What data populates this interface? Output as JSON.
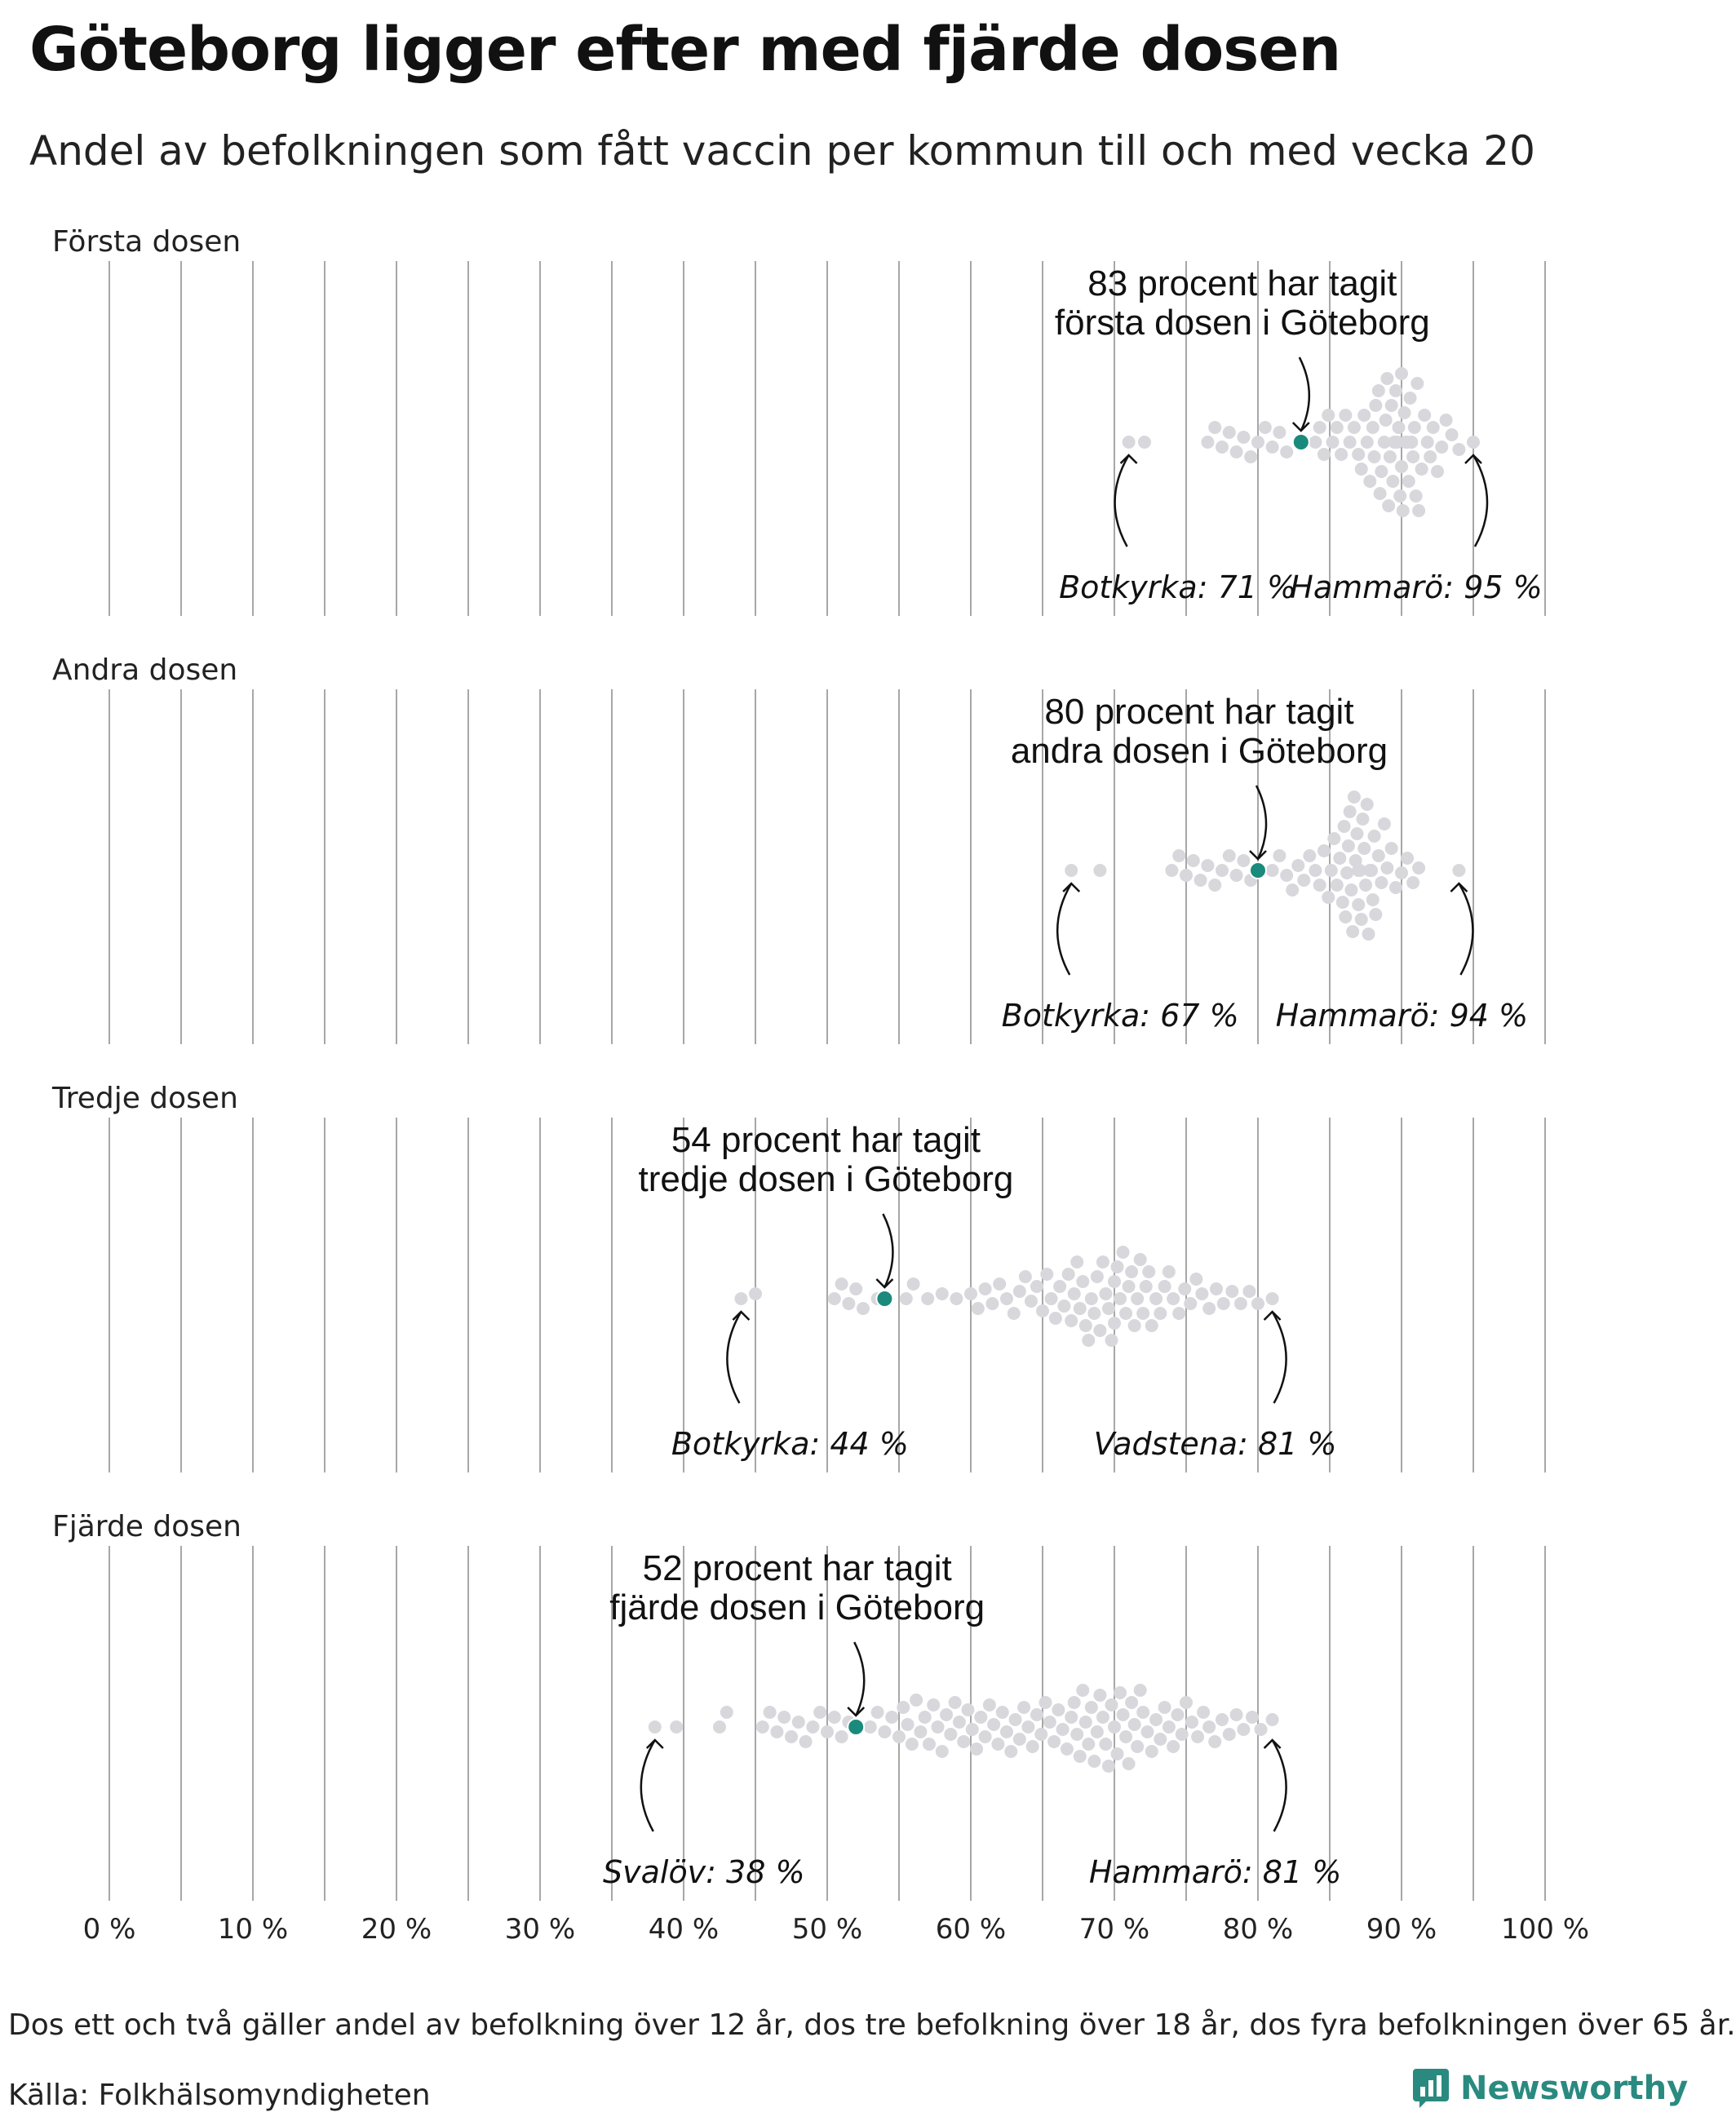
{
  "title": "Göteborg ligger efter med fjärde dosen",
  "subtitle": "Andel av befolkningen som fått vaccin per kommun till och med vecka 20",
  "footnote": "Dos ett och två gäller andel av befolkning över 12 år, dos tre befolkning över 18 år, dos fyra befolkningen över 65 år.",
  "source": "Källa: Folkhälsomyndigheten",
  "brand": "Newsworthy",
  "colors": {
    "dot": "#d8d7dc",
    "highlight": "#1a8a7c",
    "grid": "#a7a7a7",
    "brand": "#2a8a80"
  },
  "icons": {
    "brand_logo": "newsworthy-bar-chart-icon"
  },
  "chart_data": {
    "type": "scatter",
    "xlim": [
      0,
      100
    ],
    "x_unit": "%",
    "x_ticks": [
      "0 %",
      "10 %",
      "20 %",
      "30 %",
      "40 %",
      "50 %",
      "60 %",
      "70 %",
      "80 %",
      "90 %",
      "100 %"
    ],
    "grid": true,
    "panels": [
      {
        "name": "Första dosen",
        "goteborg": 83,
        "callout": [
          "83 procent har tagit",
          "första dosen i Göteborg"
        ],
        "low": {
          "label": "Botkyrka: 71 %",
          "value": 71
        },
        "high": {
          "label": "Hammarö: 95 %",
          "value": 95
        },
        "values": [
          71.0,
          72.1,
          76.5,
          77.0,
          77.5,
          78.0,
          78.5,
          79.0,
          79.5,
          80.0,
          80.5,
          81.0,
          81.5,
          82.0,
          84.0,
          84.3,
          84.6,
          84.9,
          85.2,
          85.5,
          85.8,
          86.1,
          86.4,
          86.7,
          87.0,
          87.2,
          87.4,
          87.6,
          87.8,
          88.0,
          88.1,
          88.2,
          88.4,
          88.5,
          88.6,
          88.8,
          88.9,
          89.0,
          89.1,
          89.2,
          89.3,
          89.4,
          89.5,
          89.6,
          89.7,
          89.8,
          89.9,
          90.0,
          90.0,
          90.1,
          90.2,
          90.3,
          90.4,
          90.5,
          90.6,
          90.7,
          90.8,
          90.9,
          91.0,
          91.1,
          91.2,
          91.4,
          91.6,
          91.8,
          92.0,
          92.2,
          92.5,
          92.8,
          93.1,
          93.5,
          94.0,
          95.0
        ]
      },
      {
        "name": "Andra dosen",
        "goteborg": 80,
        "callout": [
          "80 procent har tagit",
          "andra dosen i Göteborg"
        ],
        "low": {
          "label": "Botkyrka: 67 %",
          "value": 67
        },
        "high": {
          "label": "Hammarö: 94 %",
          "value": 94
        },
        "values": [
          67.0,
          69.0,
          74.0,
          74.5,
          75.0,
          75.5,
          76.0,
          76.5,
          77.0,
          77.5,
          78.0,
          78.5,
          79.0,
          79.5,
          81.0,
          81.5,
          82.0,
          82.4,
          82.8,
          83.2,
          83.6,
          84.0,
          84.3,
          84.6,
          84.9,
          85.1,
          85.3,
          85.5,
          85.7,
          85.9,
          86.0,
          86.1,
          86.2,
          86.3,
          86.4,
          86.5,
          86.6,
          86.7,
          86.8,
          86.9,
          87.0,
          87.0,
          87.1,
          87.2,
          87.3,
          87.4,
          87.5,
          87.6,
          87.7,
          87.8,
          87.9,
          88.0,
          88.1,
          88.2,
          88.4,
          88.6,
          88.8,
          89.0,
          89.3,
          89.6,
          90.0,
          90.4,
          90.8,
          91.2,
          94.0
        ]
      },
      {
        "name": "Tredje dosen",
        "goteborg": 54,
        "callout": [
          "54 procent har tagit",
          "tredje dosen i Göteborg"
        ],
        "low": {
          "label": "Botkyrka: 44 %",
          "value": 44
        },
        "high": {
          "label": "Vadstena: 81 %",
          "value": 81
        },
        "values": [
          44.0,
          45.0,
          50.5,
          51.0,
          51.5,
          52.0,
          52.5,
          53.5,
          55.5,
          56.0,
          57.0,
          58.0,
          59.0,
          60.0,
          60.5,
          61.0,
          61.5,
          62.0,
          62.5,
          63.0,
          63.4,
          63.8,
          64.2,
          64.6,
          65.0,
          65.3,
          65.6,
          65.9,
          66.2,
          66.5,
          66.8,
          67.0,
          67.2,
          67.4,
          67.6,
          67.8,
          68.0,
          68.2,
          68.4,
          68.6,
          68.8,
          69.0,
          69.2,
          69.4,
          69.6,
          69.8,
          70.0,
          70.0,
          70.2,
          70.4,
          70.6,
          70.8,
          71.0,
          71.2,
          71.4,
          71.6,
          71.8,
          72.0,
          72.2,
          72.4,
          72.6,
          72.9,
          73.2,
          73.5,
          73.8,
          74.1,
          74.5,
          74.9,
          75.3,
          75.7,
          76.1,
          76.6,
          77.1,
          77.6,
          78.2,
          78.8,
          79.4,
          80.0,
          81.0
        ]
      },
      {
        "name": "Fjärde dosen",
        "goteborg": 52,
        "callout": [
          "52 procent har tagit",
          "fjärde dosen i Göteborg"
        ],
        "low": {
          "label": "Svalöv: 38 %",
          "value": 38
        },
        "high": {
          "label": "Hammarö: 81 %",
          "value": 81
        },
        "values": [
          38.0,
          39.5,
          42.5,
          43.0,
          45.5,
          46.0,
          46.5,
          47.0,
          47.5,
          48.0,
          48.5,
          49.0,
          49.5,
          50.0,
          50.5,
          51.0,
          51.5,
          53.0,
          53.5,
          54.0,
          54.5,
          55.0,
          55.3,
          55.6,
          55.9,
          56.2,
          56.5,
          56.8,
          57.1,
          57.4,
          57.7,
          58.0,
          58.3,
          58.6,
          58.9,
          59.2,
          59.5,
          59.8,
          60.1,
          60.4,
          60.7,
          61.0,
          61.3,
          61.6,
          61.9,
          62.2,
          62.5,
          62.8,
          63.1,
          63.4,
          63.7,
          64.0,
          64.3,
          64.6,
          64.9,
          65.2,
          65.5,
          65.8,
          66.1,
          66.4,
          66.7,
          67.0,
          67.2,
          67.4,
          67.6,
          67.8,
          68.0,
          68.2,
          68.4,
          68.6,
          68.8,
          69.0,
          69.2,
          69.4,
          69.6,
          69.8,
          70.0,
          70.2,
          70.4,
          70.6,
          70.8,
          71.0,
          71.2,
          71.4,
          71.6,
          71.8,
          72.0,
          72.3,
          72.6,
          72.9,
          73.2,
          73.5,
          73.8,
          74.1,
          74.4,
          74.7,
          75.0,
          75.4,
          75.8,
          76.2,
          76.6,
          77.0,
          77.5,
          78.0,
          78.5,
          79.0,
          79.6,
          80.2,
          81.0
        ]
      }
    ]
  }
}
